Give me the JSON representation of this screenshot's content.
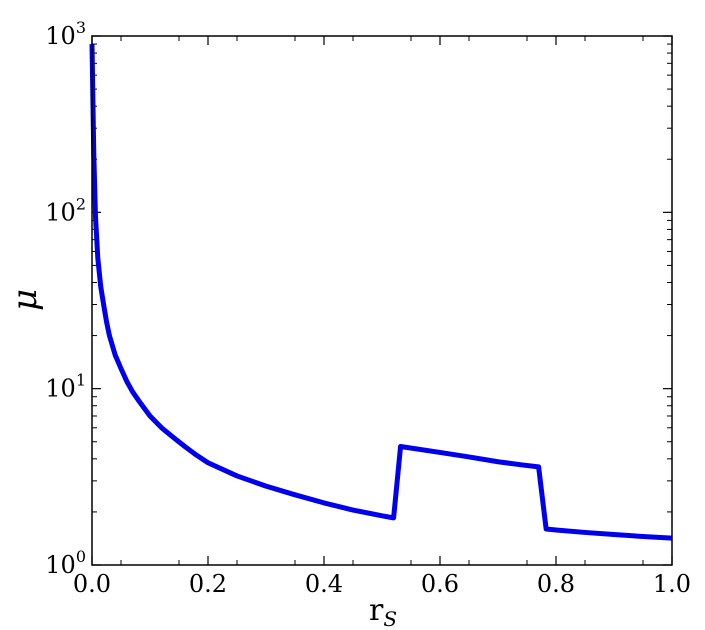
{
  "chart_data": {
    "type": "line",
    "title": "",
    "xlabel": "r",
    "xlabel_subscript": "S",
    "ylabel": "μ",
    "xlim": [
      0.0,
      1.0
    ],
    "ylim": [
      1,
      1000
    ],
    "yscale": "log",
    "grid": false,
    "x_ticks": [
      "0.0",
      "0.2",
      "0.4",
      "0.6",
      "0.8",
      "1.0"
    ],
    "y_ticks": [
      {
        "base": "10",
        "exp": "0",
        "value": 1
      },
      {
        "base": "10",
        "exp": "1",
        "value": 10
      },
      {
        "base": "10",
        "exp": "2",
        "value": 100
      },
      {
        "base": "10",
        "exp": "3",
        "value": 1000
      }
    ],
    "series": [
      {
        "color": "#0000ee",
        "points": [
          [
            0.0,
            900
          ],
          [
            0.003,
            220
          ],
          [
            0.006,
            95
          ],
          [
            0.01,
            55
          ],
          [
            0.015,
            38
          ],
          [
            0.02,
            30
          ],
          [
            0.025,
            24
          ],
          [
            0.03,
            20
          ],
          [
            0.04,
            15.5
          ],
          [
            0.05,
            13.0
          ],
          [
            0.06,
            11.0
          ],
          [
            0.07,
            9.6
          ],
          [
            0.08,
            8.6
          ],
          [
            0.1,
            7.0
          ],
          [
            0.12,
            6.0
          ],
          [
            0.14,
            5.3
          ],
          [
            0.16,
            4.7
          ],
          [
            0.18,
            4.2
          ],
          [
            0.2,
            3.8
          ],
          [
            0.25,
            3.2
          ],
          [
            0.3,
            2.8
          ],
          [
            0.35,
            2.5
          ],
          [
            0.4,
            2.25
          ],
          [
            0.45,
            2.05
          ],
          [
            0.5,
            1.9
          ],
          [
            0.52,
            1.85
          ],
          [
            0.532,
            4.7
          ],
          [
            0.6,
            4.35
          ],
          [
            0.65,
            4.1
          ],
          [
            0.7,
            3.85
          ],
          [
            0.74,
            3.7
          ],
          [
            0.77,
            3.6
          ],
          [
            0.783,
            1.6
          ],
          [
            0.8,
            1.58
          ],
          [
            0.85,
            1.53
          ],
          [
            0.9,
            1.49
          ],
          [
            0.95,
            1.45
          ],
          [
            1.0,
            1.42
          ]
        ]
      }
    ]
  }
}
